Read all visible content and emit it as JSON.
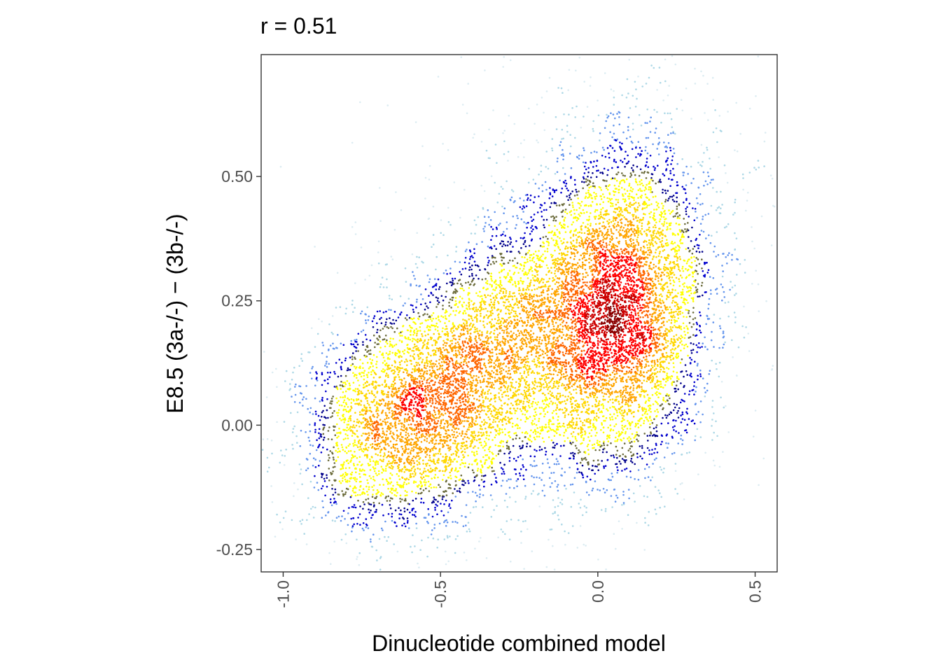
{
  "chart_data": {
    "type": "scatter",
    "title": "r = 0.51",
    "xlabel": "Dinucleotide combined model",
    "ylabel": "E8.5 (3a-/-) − (3b-/-)",
    "xlim": [
      -1.07,
      0.57
    ],
    "ylim": [
      -0.295,
      0.745
    ],
    "x_ticks": [
      -1.0,
      -0.5,
      0.0,
      0.5
    ],
    "x_tick_labels": [
      "-1.0",
      "-0.5",
      "0.0",
      "0.5"
    ],
    "y_ticks": [
      -0.25,
      0.0,
      0.25,
      0.5
    ],
    "y_tick_labels": [
      "-0.25",
      "0.00",
      "0.25",
      "0.50"
    ],
    "correlation": 0.51,
    "grid": false,
    "legend": "none",
    "density_color_scale": [
      "#dcecf2",
      "#add8e6",
      "#6495ed",
      "#0000cd",
      "#00008b",
      "#6b6b3b",
      "#ffff00",
      "#ffd700",
      "#ffa500",
      "#ff6600",
      "#ff0000",
      "#cc0000",
      "#8b0000"
    ],
    "density_clusters": [
      {
        "x_center": 0.08,
        "y_center": 0.19,
        "relative_density": "highest"
      },
      {
        "x_center": -0.63,
        "y_center": 0.02,
        "relative_density": "high"
      }
    ],
    "approx_point_count": 14000
  }
}
